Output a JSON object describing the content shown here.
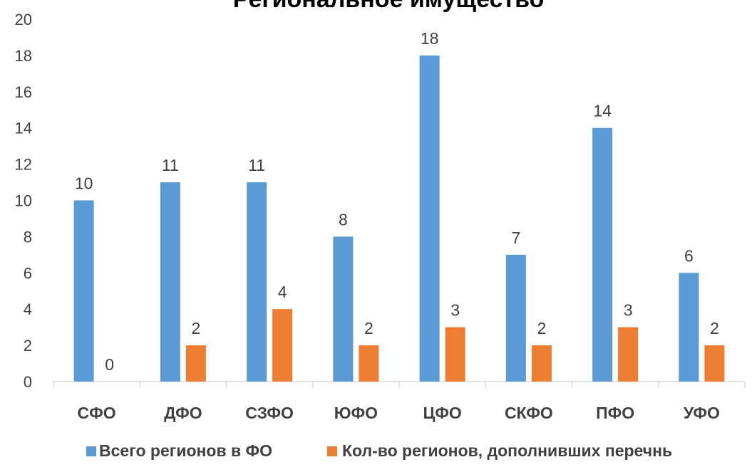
{
  "chart_data": {
    "type": "bar",
    "title": "Региональное имущество",
    "categories": [
      "СФО",
      "ДФО",
      "СЗФО",
      "ЮФО",
      "ЦФО",
      "СКФО",
      "ПФО",
      "УФО"
    ],
    "series": [
      {
        "name": "Всего регионов в ФО",
        "color": "#5B9BD5",
        "values": [
          10,
          11,
          11,
          8,
          18,
          7,
          14,
          6
        ]
      },
      {
        "name": "Кол-во регионов, дополнивших перечнь",
        "color": "#ED7D31",
        "values": [
          0,
          2,
          4,
          2,
          3,
          2,
          3,
          2
        ]
      }
    ],
    "ylim": [
      0,
      20
    ],
    "yticks": [
      0,
      2,
      4,
      6,
      8,
      10,
      12,
      14,
      16,
      18,
      20
    ],
    "grid": false,
    "data_labels": true,
    "legend": "bottom"
  }
}
